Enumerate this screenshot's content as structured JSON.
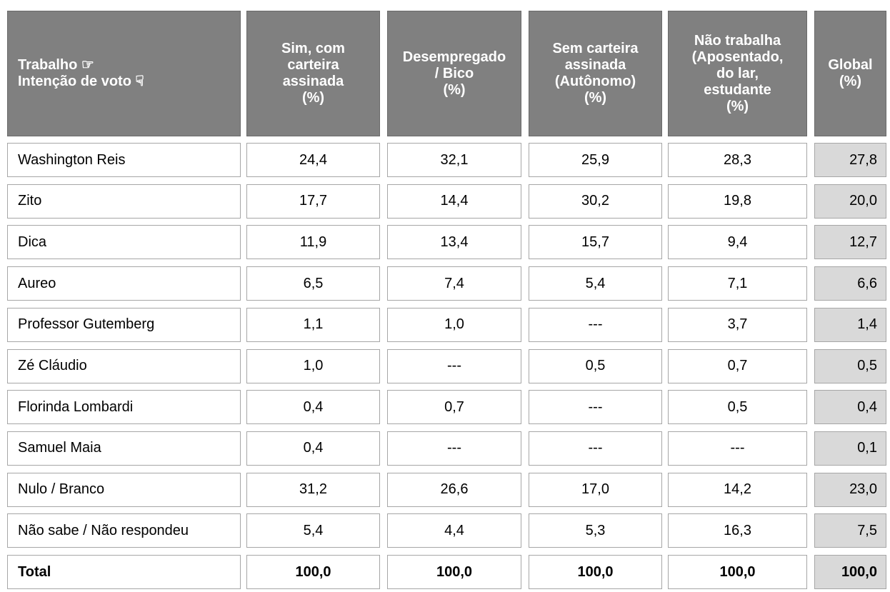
{
  "table": {
    "header": [
      [
        "Trabalho ☞",
        "Intenção de voto ☟"
      ],
      [
        "Sim, com",
        "carteira",
        "assinada",
        "(%)"
      ],
      [
        "Desempregado",
        "/ Bico",
        "(%)"
      ],
      [
        "Sem carteira",
        "assinada",
        "(Autônomo)",
        "(%)"
      ],
      [
        "Não trabalha",
        "(Aposentado,",
        "do lar,",
        "estudante",
        "(%)"
      ],
      [
        "Global",
        "(%)"
      ]
    ],
    "rows": [
      [
        "Washington Reis",
        "24,4",
        "32,1",
        "25,9",
        "28,3",
        "27,8"
      ],
      [
        "Zito",
        "17,7",
        "14,4",
        "30,2",
        "19,8",
        "20,0"
      ],
      [
        "Dica",
        "11,9",
        "13,4",
        "15,7",
        "9,4",
        "12,7"
      ],
      [
        "Aureo",
        "6,5",
        "7,4",
        "5,4",
        "7,1",
        "6,6"
      ],
      [
        "Professor Gutemberg",
        "1,1",
        "1,0",
        "---",
        "3,7",
        "1,4"
      ],
      [
        "Zé Cláudio",
        "1,0",
        "---",
        "0,5",
        "0,7",
        "0,5"
      ],
      [
        "Florinda Lombardi",
        "0,4",
        "0,7",
        "---",
        "0,5",
        "0,4"
      ],
      [
        "Samuel Maia",
        "0,4",
        "---",
        "---",
        "---",
        "0,1"
      ],
      [
        "Nulo / Branco",
        "31,2",
        "26,6",
        "17,0",
        "14,2",
        "23,0"
      ],
      [
        "Não sabe / Não respondeu",
        "5,4",
        "4,4",
        "5,3",
        "16,3",
        "7,5"
      ],
      [
        "Total",
        "100,0",
        "100,0",
        "100,0",
        "100,0",
        "100,0"
      ]
    ]
  }
}
